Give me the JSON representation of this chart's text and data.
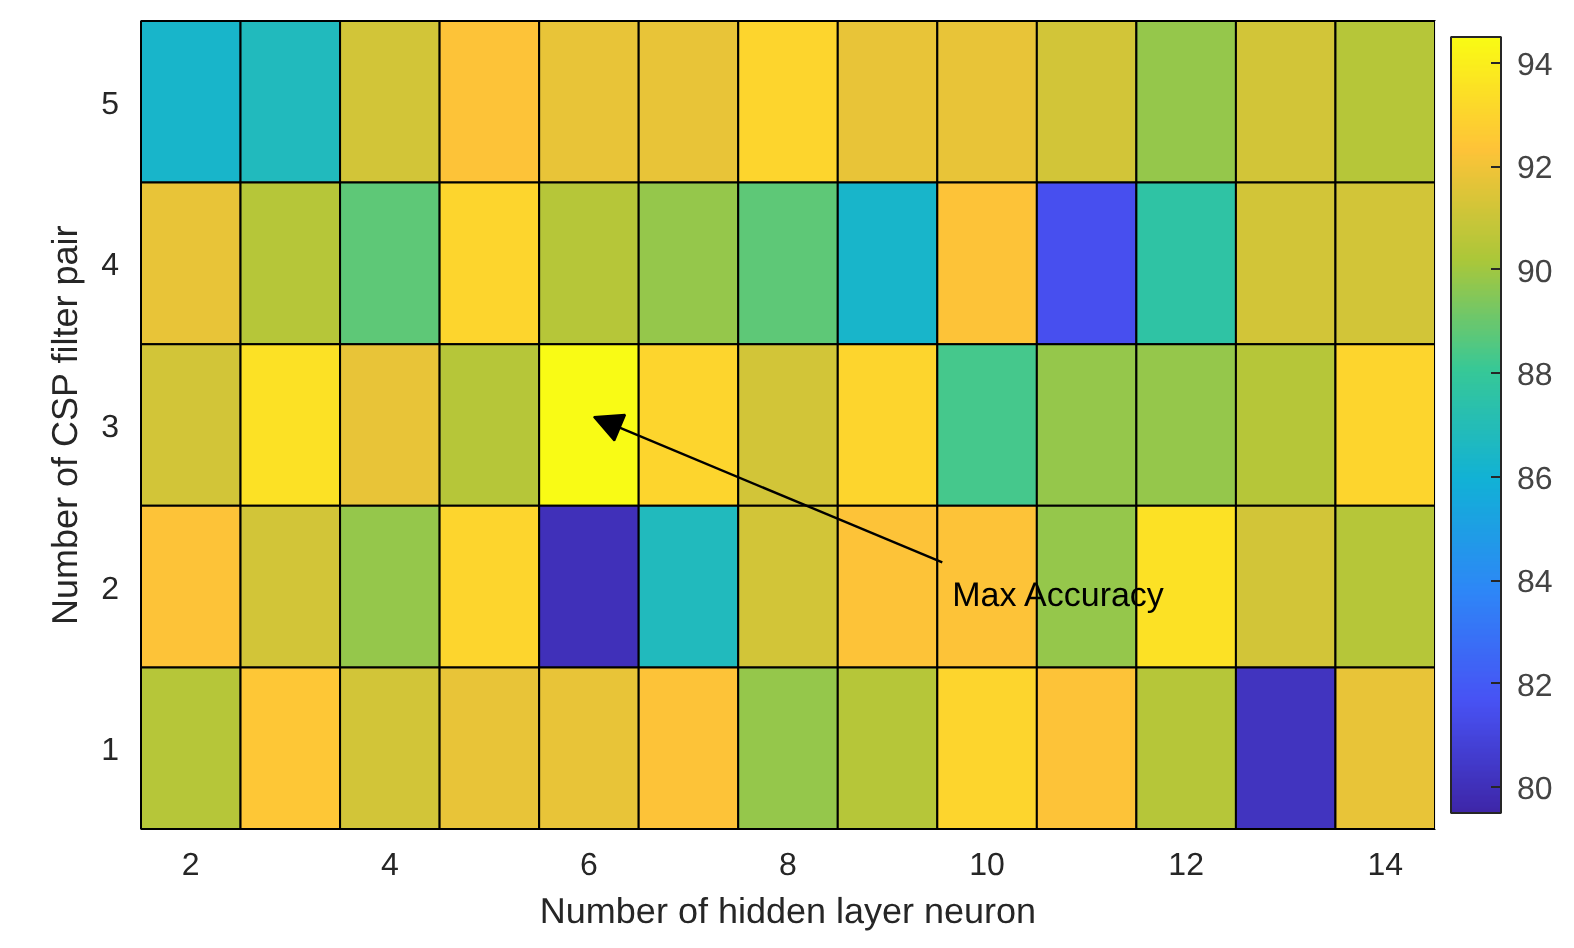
{
  "chart_data": {
    "type": "heatmap",
    "xlabel": "Number of hidden layer neuron",
    "ylabel": "Number of CSP filter pair",
    "categories": [
      "2",
      null,
      "4",
      null,
      "6",
      null,
      "8",
      null,
      "10",
      null,
      "12",
      null,
      "14"
    ],
    "y_categories": [
      "5",
      "4",
      "3",
      "2",
      "1"
    ],
    "cells": [
      [
        86.3,
        86.8,
        91.2,
        92.3,
        91.8,
        91.8,
        93.0,
        91.8,
        91.8,
        91.2,
        89.8,
        91.2,
        90.5
      ],
      [
        91.8,
        90.5,
        88.8,
        93.0,
        90.5,
        89.8,
        88.8,
        86.3,
        92.3,
        81.5,
        87.6,
        91.2,
        91.2
      ],
      [
        91.2,
        93.5,
        91.8,
        90.5,
        94.5,
        93.0,
        91.2,
        93.0,
        88.3,
        89.8,
        89.8,
        90.5,
        93.0
      ],
      [
        92.3,
        91.2,
        89.8,
        93.0,
        80.0,
        86.8,
        91.2,
        92.3,
        92.3,
        89.8,
        93.5,
        91.2,
        90.5
      ],
      [
        90.5,
        92.5,
        91.2,
        91.8,
        91.8,
        92.3,
        89.8,
        90.5,
        93.0,
        92.3,
        90.5,
        80.2,
        91.8
      ]
    ],
    "clim": [
      79.5,
      94.5
    ],
    "cticks": [
      80,
      82,
      84,
      86,
      88,
      90,
      92,
      94
    ],
    "annotations": [
      "Max Accuracy"
    ]
  }
}
